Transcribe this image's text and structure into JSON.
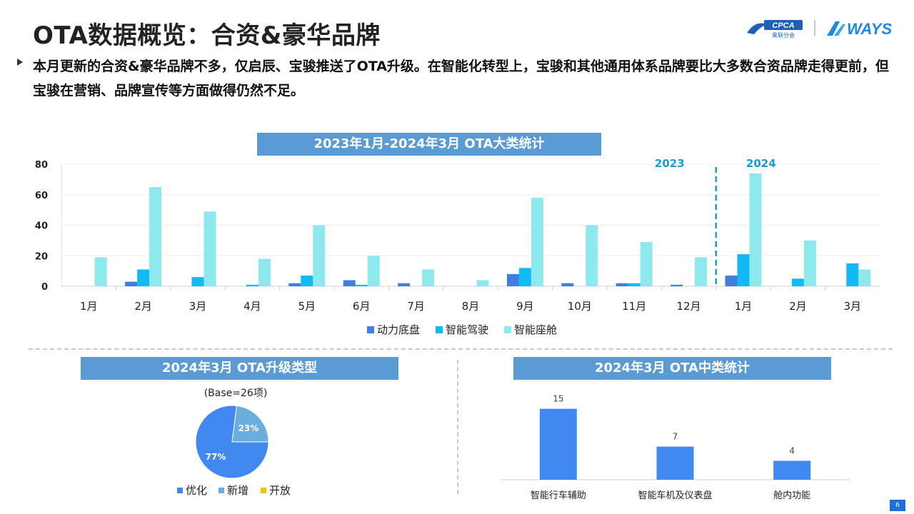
{
  "page": {
    "title": "OTA数据概览：合资&豪华品牌",
    "summary": "本月更新的合资&豪华品牌不多，仅启辰、宝骏推送了OTA升级。在智能化转型上，宝骏和其他通用体系品牌要比大多数合资品牌走得更前，但宝骏在营销、品牌宣传等方面做得仍然不足。",
    "bullet_icon": "triangle-right-icon",
    "logo_left_text": "CPCA",
    "logo_left_sub": "乘联分会",
    "logo_right_text": "WAYS",
    "page_number": "6"
  },
  "colors": {
    "banner": "#5b9bd5",
    "powertrain": "#3f7fe0",
    "adas": "#11b9f5",
    "cockpit": "#8de9ee",
    "pie_optimize": "#4189f0",
    "pie_new": "#6badde",
    "pie_open": "#f2c40f",
    "mid_bar": "#4189f0",
    "year_marker": "#1a9bd7"
  },
  "chart_data": [
    {
      "type": "bar",
      "title": "2023年1月-2024年3月 OTA大类统计",
      "categories": [
        "1月",
        "2月",
        "3月",
        "4月",
        "5月",
        "6月",
        "7月",
        "8月",
        "9月",
        "10月",
        "11月",
        "12月",
        "1月",
        "2月",
        "3月"
      ],
      "series": [
        {
          "name": "动力底盘",
          "values": [
            0,
            3,
            0,
            0,
            2,
            4,
            2,
            0,
            8,
            2,
            2,
            1,
            7,
            0,
            0
          ]
        },
        {
          "name": "智能驾驶",
          "values": [
            0,
            11,
            6,
            1,
            7,
            1,
            0,
            0,
            12,
            0,
            2,
            0,
            21,
            5,
            15
          ]
        },
        {
          "name": "智能座舱",
          "values": [
            19,
            65,
            49,
            18,
            40,
            20,
            11,
            4,
            58,
            40,
            29,
            19,
            74,
            30,
            11
          ]
        }
      ],
      "ylim": [
        0,
        80
      ],
      "yticks": [
        "0",
        "20",
        "40",
        "60",
        "80"
      ],
      "year_labels": [
        "2023",
        "2024"
      ],
      "legend_position": "bottom",
      "grid": true
    },
    {
      "type": "pie",
      "title": "2024年3月 OTA升级类型",
      "subtitle": "(Base=26项)",
      "labels": [
        "优化",
        "新增",
        "开放"
      ],
      "values": [
        77,
        23,
        0
      ],
      "value_labels": [
        "77%",
        "23%",
        ""
      ],
      "legend_position": "bottom"
    },
    {
      "type": "bar",
      "title": "2024年3月 OTA中类统计",
      "categories": [
        "智能行车辅助",
        "智能车机及仪表盘",
        "舱内功能"
      ],
      "values": [
        15,
        7,
        4
      ],
      "value_labels": [
        "15",
        "7",
        "4"
      ],
      "ylim": [
        0,
        16
      ]
    }
  ]
}
